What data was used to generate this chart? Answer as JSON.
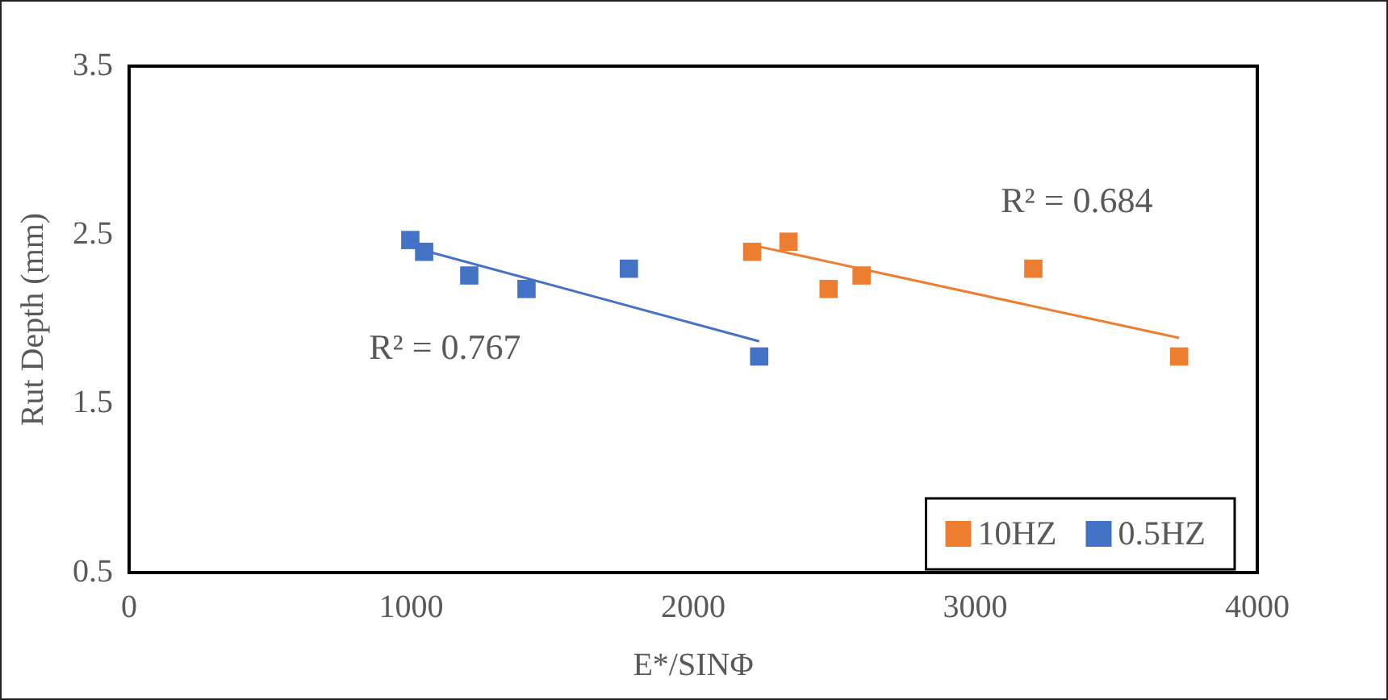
{
  "chart_data": {
    "type": "scatter",
    "xlabel": "E*/SINΦ",
    "ylabel": "Rut Depth (mm)",
    "xlim": [
      0,
      4000
    ],
    "xticks": [
      0,
      1000,
      2000,
      3000,
      4000
    ],
    "ylim": [
      0.5,
      3.5
    ],
    "yticks": [
      0.5,
      1.5,
      2.5,
      3.5
    ],
    "grid": false,
    "legend": "bottom right",
    "marker": "square",
    "series": [
      {
        "name": "10HZ",
        "color": "#ed7d31",
        "x": [
          2209,
          2338,
          2480,
          2597,
          3206,
          3723
        ],
        "values": [
          2.4,
          2.46,
          2.18,
          2.26,
          2.3,
          1.78
        ]
      },
      {
        "name": "0.5HZ",
        "color": "#4472c4",
        "x": [
          997,
          1046,
          1206,
          1409,
          1772,
          2234
        ],
        "values": [
          2.47,
          2.4,
          2.26,
          2.18,
          2.3,
          1.78
        ]
      },
      {
        "type": "line",
        "marker": "none",
        "color": "#ed7d31",
        "x": [
          2209,
          3723
        ],
        "values": [
          2.44,
          1.89
        ]
      },
      {
        "type": "line",
        "marker": "none",
        "color": "#4472c4",
        "x": [
          997,
          2234
        ],
        "values": [
          2.43,
          1.87
        ]
      }
    ],
    "annotations": [
      "R² = 0.684",
      "R² = 0.767"
    ]
  }
}
